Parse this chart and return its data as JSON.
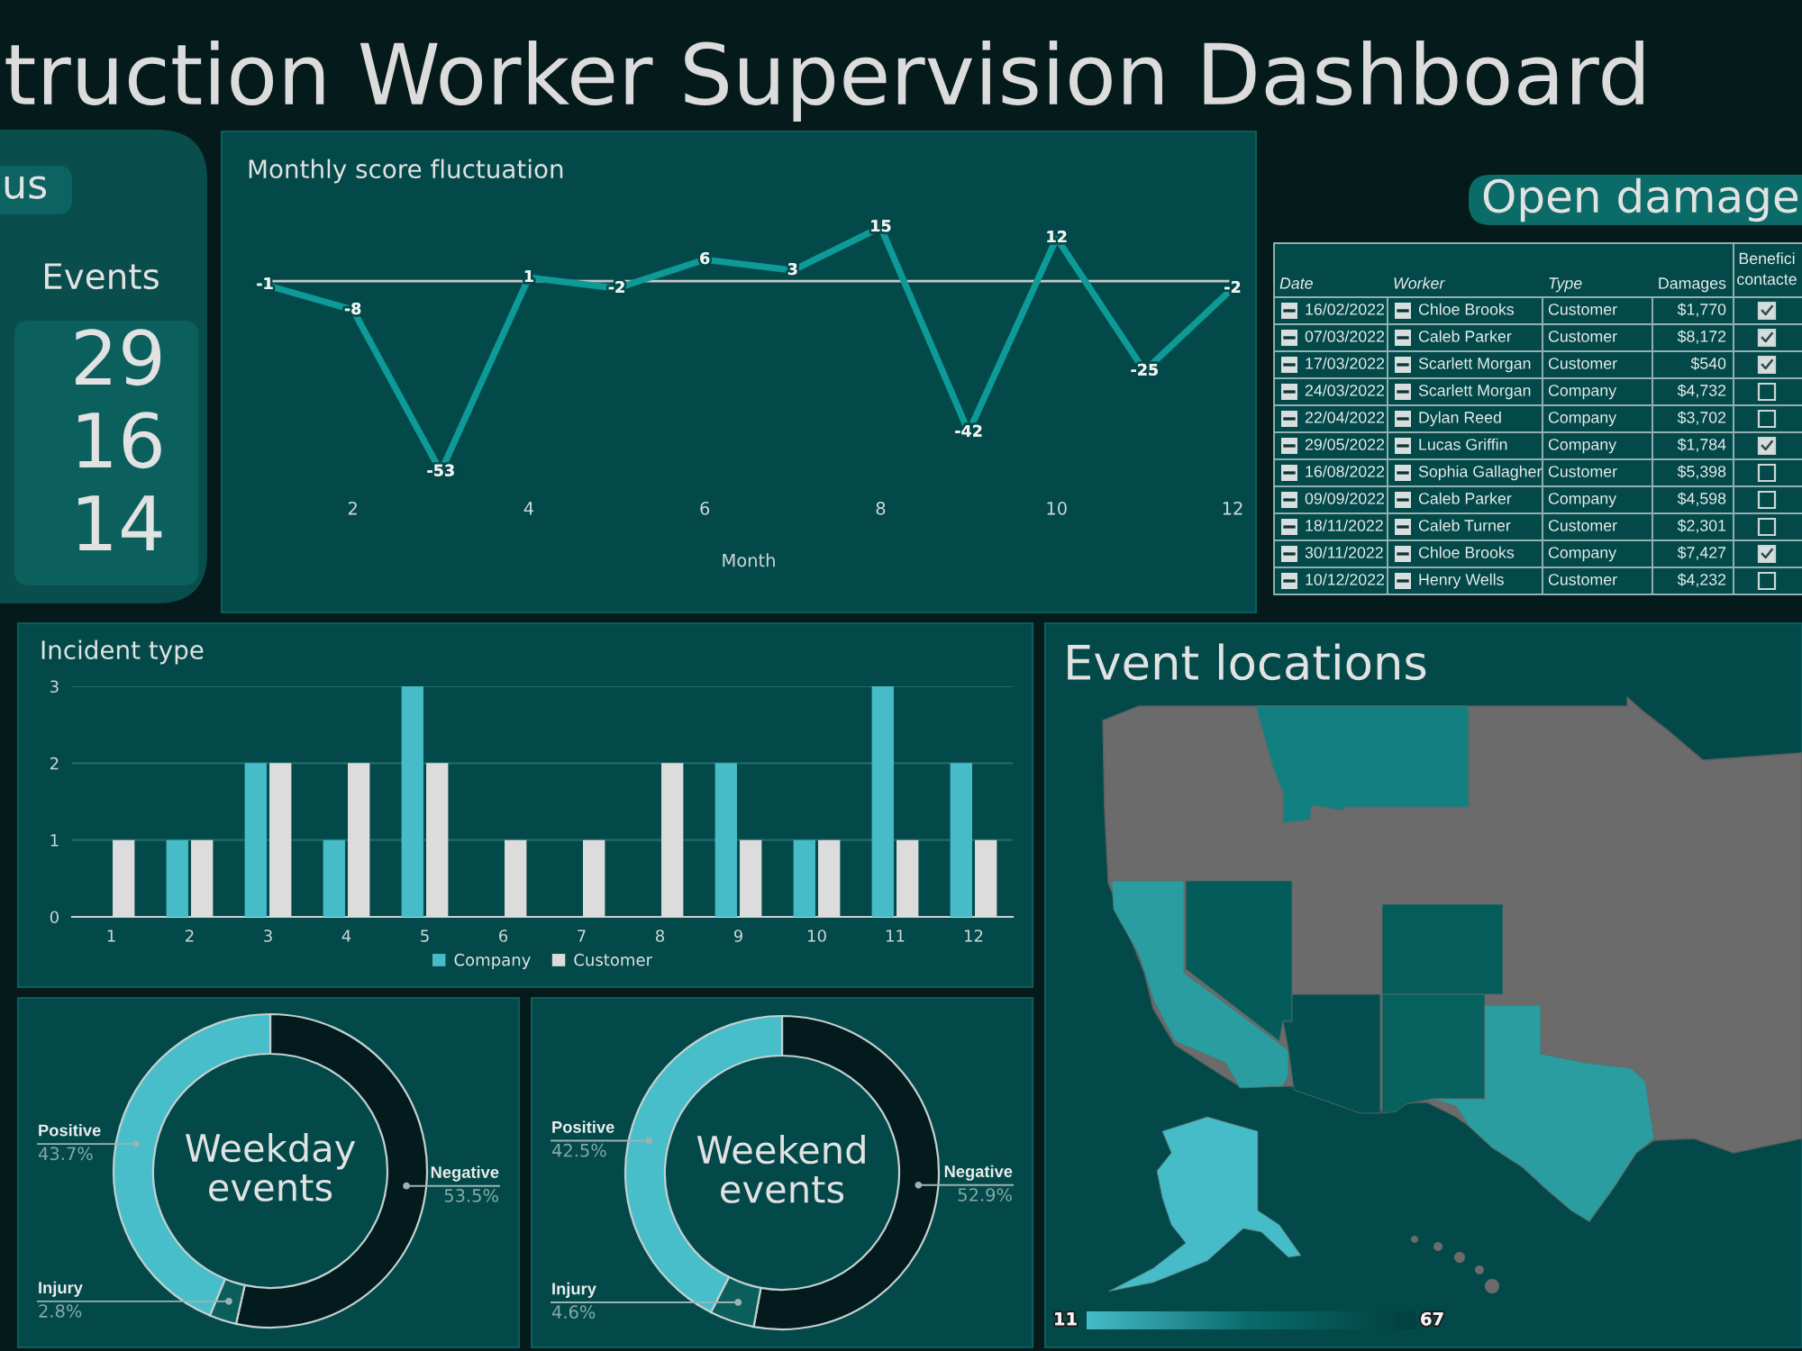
{
  "chart_data": [
    {
      "type": "other",
      "title": "truction Worker Supervision Dashboard"
    },
    {
      "type": "other",
      "title": "us",
      "subtitle": "Events",
      "annotations": [
        "29",
        "16",
        "14"
      ]
    },
    {
      "type": "line",
      "title": "Monthly score fluctuation",
      "xlabel": "Month",
      "x": [
        1,
        2,
        3,
        4,
        5,
        6,
        7,
        8,
        9,
        10,
        11,
        12
      ],
      "series": [
        {
          "color": "#0e9a96",
          "values": [
            -1,
            -8,
            -53,
            1,
            -2,
            6,
            3,
            15,
            -42,
            12,
            -25,
            -2
          ]
        }
      ],
      "xlim": [
        1,
        12
      ],
      "xticks": [
        2,
        4,
        6,
        8,
        10,
        12
      ],
      "tick_labels": "x",
      "data_labels": true,
      "ref_lines": [
        {
          "axis": "y",
          "value": 0,
          "color": "#c8c8c8"
        }
      ],
      "grid": false,
      "legend": false,
      "marker": "none",
      "line_style": "solid"
    },
    {
      "type": "other",
      "title": "Open damage",
      "categories": [
        "Date",
        "Worker",
        "Type",
        "Damages",
        "Benefici\ncontacte"
      ],
      "cells": [
        [
          "16/02/2022",
          "Chloe Brooks",
          "Customer",
          "$1,770",
          true
        ],
        [
          "07/03/2022",
          "Caleb Parker",
          "Customer",
          "$8,172",
          true
        ],
        [
          "17/03/2022",
          "Scarlett Morgan",
          "Customer",
          "$540",
          true
        ],
        [
          "24/03/2022",
          "Scarlett Morgan",
          "Company",
          "$4,732",
          false
        ],
        [
          "22/04/2022",
          "Dylan Reed",
          "Company",
          "$3,702",
          false
        ],
        [
          "29/05/2022",
          "Lucas Griffin",
          "Company",
          "$1,784",
          true
        ],
        [
          "16/08/2022",
          "Sophia Gallagher",
          "Customer",
          "$5,398",
          false
        ],
        [
          "09/09/2022",
          "Caleb Parker",
          "Company",
          "$4,598",
          false
        ],
        [
          "18/11/2022",
          "Caleb Turner",
          "Customer",
          "$2,301",
          false
        ],
        [
          "30/11/2022",
          "Chloe Brooks",
          "Company",
          "$7,427",
          true
        ],
        [
          "10/12/2022",
          "Henry Wells",
          "Customer",
          "$4,232",
          false
        ]
      ]
    },
    {
      "type": "bar",
      "title": "Incident type",
      "categories": [
        "1",
        "2",
        "3",
        "4",
        "5",
        "6",
        "7",
        "8",
        "9",
        "10",
        "11",
        "12"
      ],
      "series": [
        {
          "name": "Company",
          "color": "#45bcc8",
          "values": [
            null,
            1,
            2,
            1,
            3,
            null,
            null,
            null,
            2,
            1,
            3,
            2
          ]
        },
        {
          "name": "Customer",
          "color": "#dcdcdc",
          "values": [
            1,
            1,
            2,
            2,
            2,
            1,
            1,
            2,
            1,
            1,
            1,
            1
          ]
        }
      ],
      "ylim": [
        0,
        3
      ],
      "yticks": [
        0,
        1,
        2,
        3
      ],
      "grid": "y",
      "legend": "bottom"
    },
    {
      "type": "other",
      "title": "Event locations",
      "annotations": [
        "11",
        "67"
      ]
    },
    {
      "type": "donut",
      "title": "Weekday events",
      "categories": [
        "Negative",
        "Injury",
        "Positive"
      ],
      "values": [
        53.5,
        2.8,
        43.7
      ],
      "colors": [
        "#031b1c",
        "#0a5f5c",
        "#47bec9"
      ],
      "value_labels": [
        "53.5%",
        "2.8%",
        "43.7%"
      ]
    },
    {
      "type": "donut",
      "title": "Weekend events",
      "categories": [
        "Negative",
        "Injury",
        "Positive"
      ],
      "values": [
        52.9,
        4.6,
        42.5
      ],
      "colors": [
        "#031b1c",
        "#0a5f5c",
        "#47bec9"
      ],
      "value_labels": [
        "52.9%",
        "4.6%",
        "42.5%"
      ]
    }
  ]
}
